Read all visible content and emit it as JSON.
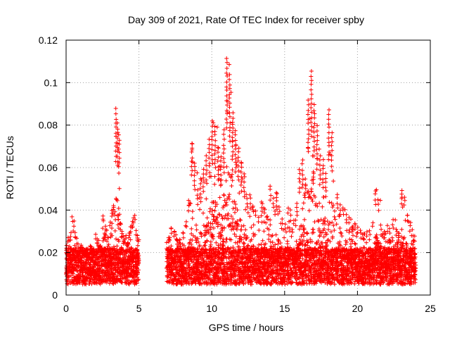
{
  "chart_data": {
    "type": "scatter",
    "title": "Day 309 of 2021, Rate Of TEC Index for receiver spby",
    "xlabel": "GPS time / hours",
    "ylabel": "ROTI / TECUs",
    "xlim": [
      0,
      25
    ],
    "ylim": [
      0,
      0.12
    ],
    "x_ticks": [
      "0",
      "5",
      "10",
      "15",
      "20",
      "25"
    ],
    "y_ticks": [
      "0",
      "0.02",
      "0.04",
      "0.06",
      "0.08",
      "0.1",
      "0.12"
    ],
    "grid": true,
    "marker": "plus",
    "color": "#ff0000",
    "gap_hours": [
      5.0,
      6.9
    ],
    "series": [
      {
        "x": [
          0.0,
          0.1,
          0.2,
          0.3,
          0.4,
          0.5,
          0.6,
          0.7,
          0.8,
          0.9,
          1.0,
          1.1,
          1.2,
          1.3,
          1.4,
          1.5,
          1.6,
          1.7,
          1.8,
          1.9,
          2.0,
          2.1,
          2.2,
          2.3,
          2.4,
          2.5,
          2.6,
          2.7,
          2.8,
          2.9,
          3.0,
          3.1,
          3.2,
          3.3,
          3.4,
          3.5,
          3.6,
          3.7,
          3.8,
          3.9,
          4.0,
          4.1,
          4.2,
          4.3,
          4.4,
          4.5,
          4.6,
          4.7,
          4.8,
          4.9,
          6.9,
          7.0,
          7.2,
          7.4,
          7.6,
          7.8,
          8.0,
          8.2,
          8.4,
          8.6,
          8.8,
          9.0,
          9.2,
          9.4,
          9.6,
          9.8,
          10.0,
          10.2,
          10.4,
          10.6,
          10.8,
          11.0,
          11.2,
          11.4,
          11.6,
          11.8,
          12.0,
          12.2,
          12.4,
          12.6,
          12.8,
          13.0,
          13.2,
          13.4,
          13.6,
          13.8,
          14.0,
          14.2,
          14.4,
          14.6,
          14.8,
          15.0,
          15.2,
          15.4,
          15.6,
          15.8,
          16.0,
          16.2,
          16.4,
          16.6,
          16.8,
          17.0,
          17.2,
          17.4,
          17.6,
          17.8,
          18.0,
          18.2,
          18.4,
          18.6,
          18.8,
          19.0,
          19.2,
          19.4,
          19.6,
          19.8,
          20.0,
          20.2,
          20.4,
          20.6,
          20.8,
          21.0,
          21.2,
          21.4,
          21.6,
          21.8,
          22.0,
          22.2,
          22.4,
          22.6,
          22.8,
          23.0,
          23.2,
          23.4,
          23.6,
          23.8,
          23.9
        ],
        "y": [
          0.024,
          0.028,
          0.026,
          0.03,
          0.037,
          0.035,
          0.03,
          0.027,
          0.025,
          0.022,
          0.024,
          0.023,
          0.022,
          0.021,
          0.02,
          0.022,
          0.024,
          0.023,
          0.02,
          0.021,
          0.029,
          0.027,
          0.026,
          0.024,
          0.022,
          0.038,
          0.03,
          0.033,
          0.028,
          0.027,
          0.035,
          0.04,
          0.043,
          0.04,
          0.088,
          0.081,
          0.076,
          0.034,
          0.03,
          0.028,
          0.027,
          0.029,
          0.025,
          0.03,
          0.033,
          0.035,
          0.037,
          0.038,
          0.031,
          0.028,
          0.025,
          0.028,
          0.032,
          0.03,
          0.027,
          0.026,
          0.03,
          0.035,
          0.045,
          0.072,
          0.063,
          0.05,
          0.055,
          0.06,
          0.066,
          0.074,
          0.082,
          0.08,
          0.07,
          0.066,
          0.078,
          0.112,
          0.104,
          0.086,
          0.078,
          0.07,
          0.063,
          0.058,
          0.046,
          0.048,
          0.042,
          0.04,
          0.037,
          0.044,
          0.041,
          0.038,
          0.052,
          0.046,
          0.049,
          0.042,
          0.036,
          0.034,
          0.041,
          0.038,
          0.036,
          0.044,
          0.06,
          0.064,
          0.055,
          0.092,
          0.106,
          0.09,
          0.08,
          0.066,
          0.064,
          0.058,
          0.088,
          0.077,
          0.04,
          0.048,
          0.043,
          0.041,
          0.038,
          0.037,
          0.033,
          0.034,
          0.032,
          0.03,
          0.029,
          0.03,
          0.031,
          0.035,
          0.05,
          0.045,
          0.031,
          0.03,
          0.033,
          0.032,
          0.036,
          0.031,
          0.03,
          0.05,
          0.047,
          0.038,
          0.035,
          0.028,
          0.028
        ]
      }
    ]
  }
}
